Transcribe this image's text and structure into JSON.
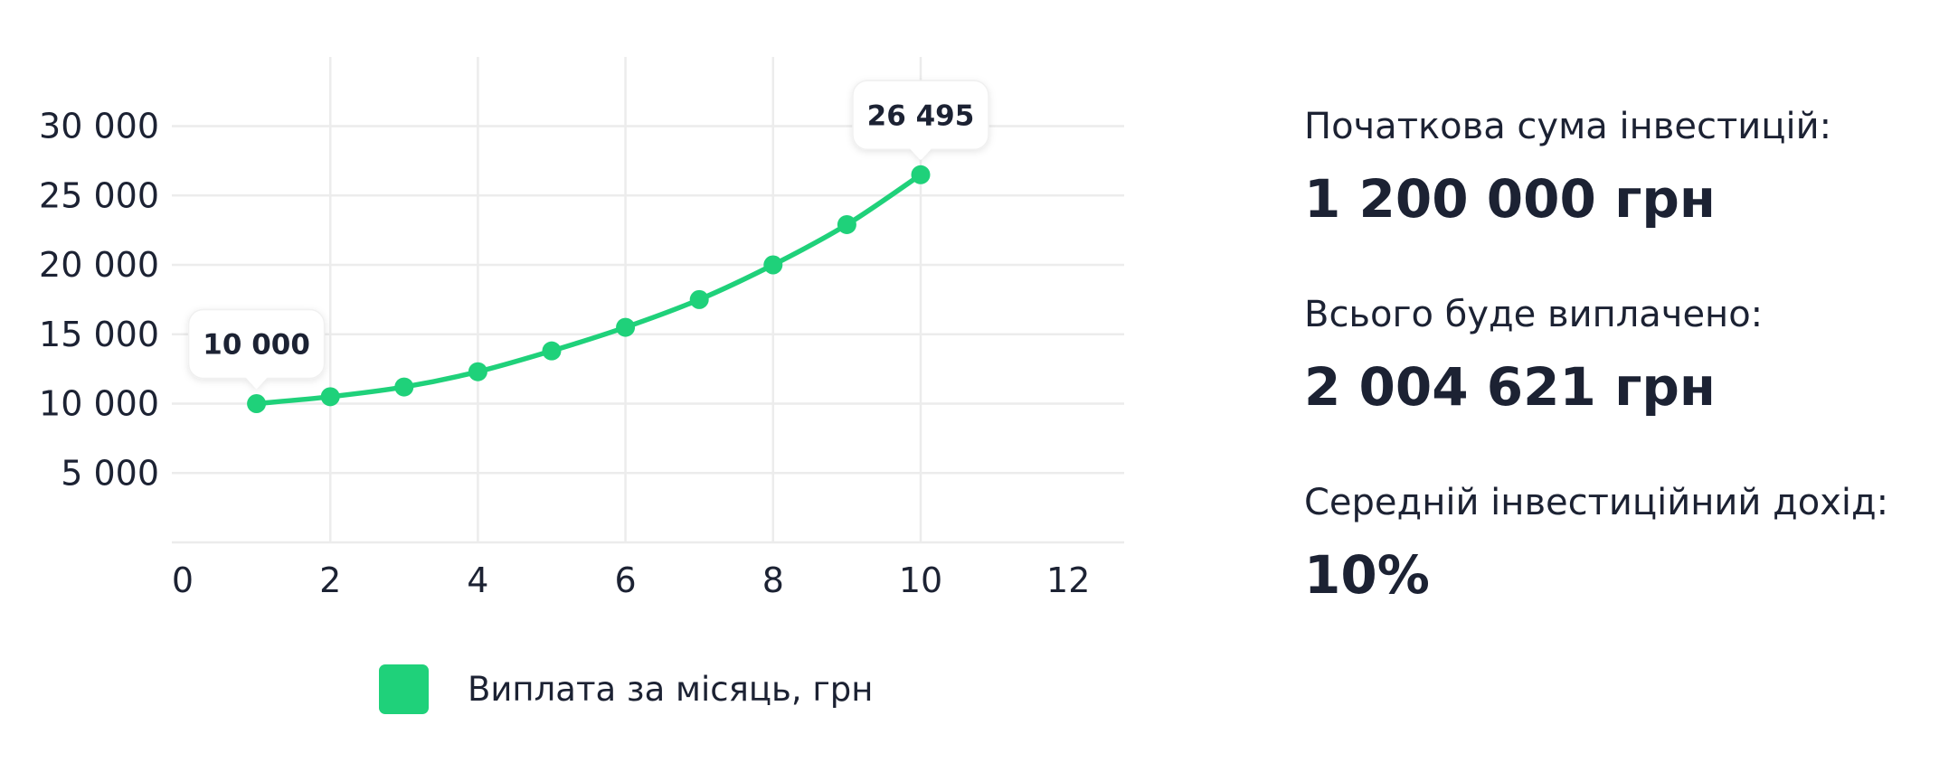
{
  "chart_data": {
    "type": "line",
    "x": [
      1,
      2,
      3,
      4,
      5,
      6,
      7,
      8,
      9,
      10
    ],
    "series": [
      {
        "name": "Виплата за місяць, грн",
        "values": [
          10000,
          10500,
          11200,
          12300,
          13800,
          15500,
          17500,
          20000,
          22900,
          26495
        ]
      }
    ],
    "x_ticks": [
      0,
      2,
      4,
      6,
      8,
      10,
      12
    ],
    "x_tick_labels": [
      "0",
      "2",
      "4",
      "6",
      "8",
      "10",
      "12"
    ],
    "y_ticks": [
      5000,
      10000,
      15000,
      20000,
      25000,
      30000
    ],
    "y_tick_labels": [
      "5 000",
      "10 000",
      "15 000",
      "20 000",
      "25 000",
      "30 000"
    ],
    "xlim": [
      0,
      12
    ],
    "ylim": [
      0,
      30000
    ],
    "grid": true,
    "color": "#1fd17a",
    "callouts": [
      {
        "x": 1,
        "y": 10000,
        "label": "10 000"
      },
      {
        "x": 10,
        "y": 26495,
        "label": "26 495"
      }
    ],
    "legend": {
      "placement": "bottom-center",
      "label": "Виплата за місяць, грн"
    }
  },
  "stats": {
    "initial_label": "Початкова сума інвестицій:",
    "initial_value": "1 200 000 грн",
    "total_label": "Всього буде виплачено:",
    "total_value": "2 004 621 грн",
    "income_label": "Середній інвестиційний дохід:",
    "income_value": "10%"
  }
}
